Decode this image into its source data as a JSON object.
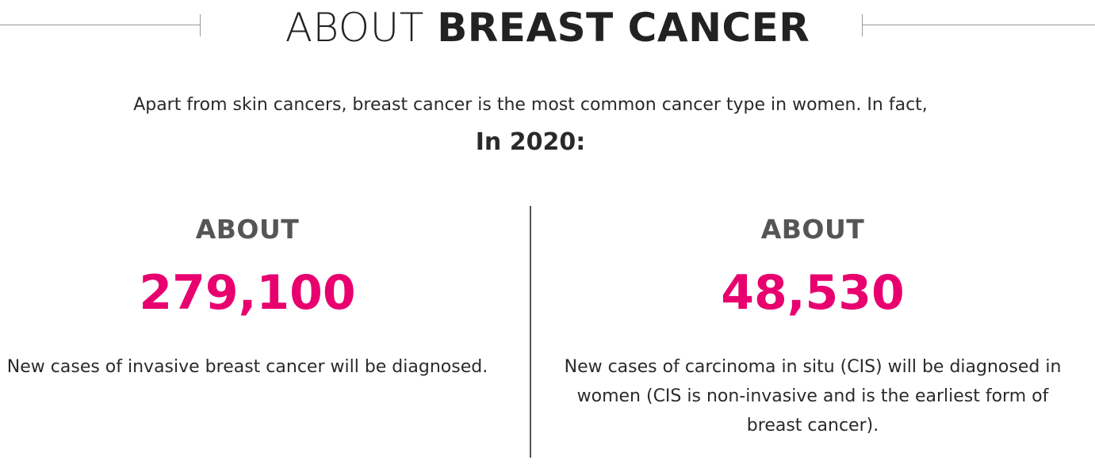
{
  "header": {
    "title_light": "ABOUT ",
    "title_bold": "BREAST CANCER"
  },
  "intro": {
    "text": "Apart from skin cancers, breast cancer is the most common cancer type in women. In fact,",
    "year_label": "In 2020:"
  },
  "stats": [
    {
      "prefix": "ABOUT",
      "value": "279,100",
      "description": "New cases of invasive breast cancer will be diagnosed."
    },
    {
      "prefix": "ABOUT",
      "value": "48,530",
      "description": "New cases of carcinoma in situ (CIS) will be diagnosed in women (CIS is non-invasive and is the earliest form of breast cancer)."
    }
  ],
  "colors": {
    "accent": "#e8006f",
    "heading": "#222222",
    "muted": "#555555",
    "rule": "#9a9a9a"
  }
}
